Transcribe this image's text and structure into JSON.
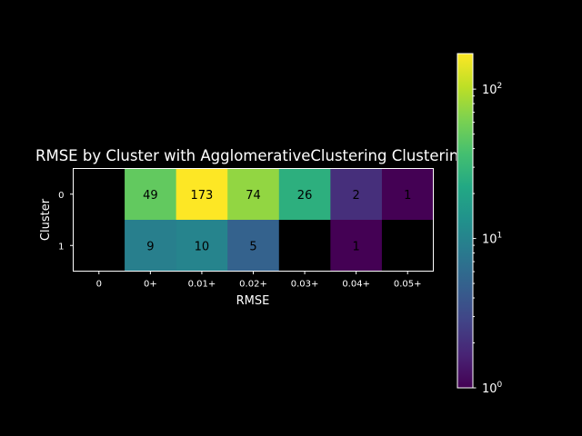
{
  "chart_data": {
    "type": "heatmap",
    "title": "RMSE by Cluster with AgglomerativeClustering Clustering",
    "xlabel": "RMSE",
    "ylabel": "Cluster",
    "x_categories": [
      "0",
      "0+",
      "0.01+",
      "0.02+",
      "0.03+",
      "0.04+",
      "0.05+"
    ],
    "y_categories": [
      "0",
      "1"
    ],
    "values": [
      [
        null,
        49,
        173,
        74,
        26,
        2,
        1
      ],
      [
        null,
        9,
        10,
        5,
        null,
        1,
        null
      ]
    ],
    "scale": "log",
    "colormap": "viridis",
    "color_range": [
      1,
      173
    ],
    "colorbar_ticks": [
      {
        "value": 1,
        "base": "10",
        "exp": "0"
      },
      {
        "value": 10,
        "base": "10",
        "exp": "1"
      },
      {
        "value": 100,
        "base": "10",
        "exp": "2"
      }
    ]
  },
  "colors": {
    "background": "#000000",
    "foreground": "#ffffff",
    "empty_cell": "#000000"
  }
}
